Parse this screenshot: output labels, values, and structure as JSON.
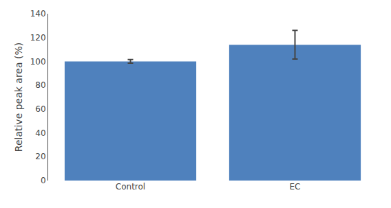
{
  "chart_data": {
    "type": "bar",
    "categories": [
      "Control",
      "EC"
    ],
    "values": [
      100,
      114
    ],
    "errors": [
      1.5,
      12
    ],
    "color": "#4F81BD",
    "ylabel": "Relative peak area (%)",
    "ylim": [
      0,
      140
    ],
    "yticks": [
      0,
      20,
      40,
      60,
      80,
      100,
      120,
      140
    ],
    "grid": false
  }
}
